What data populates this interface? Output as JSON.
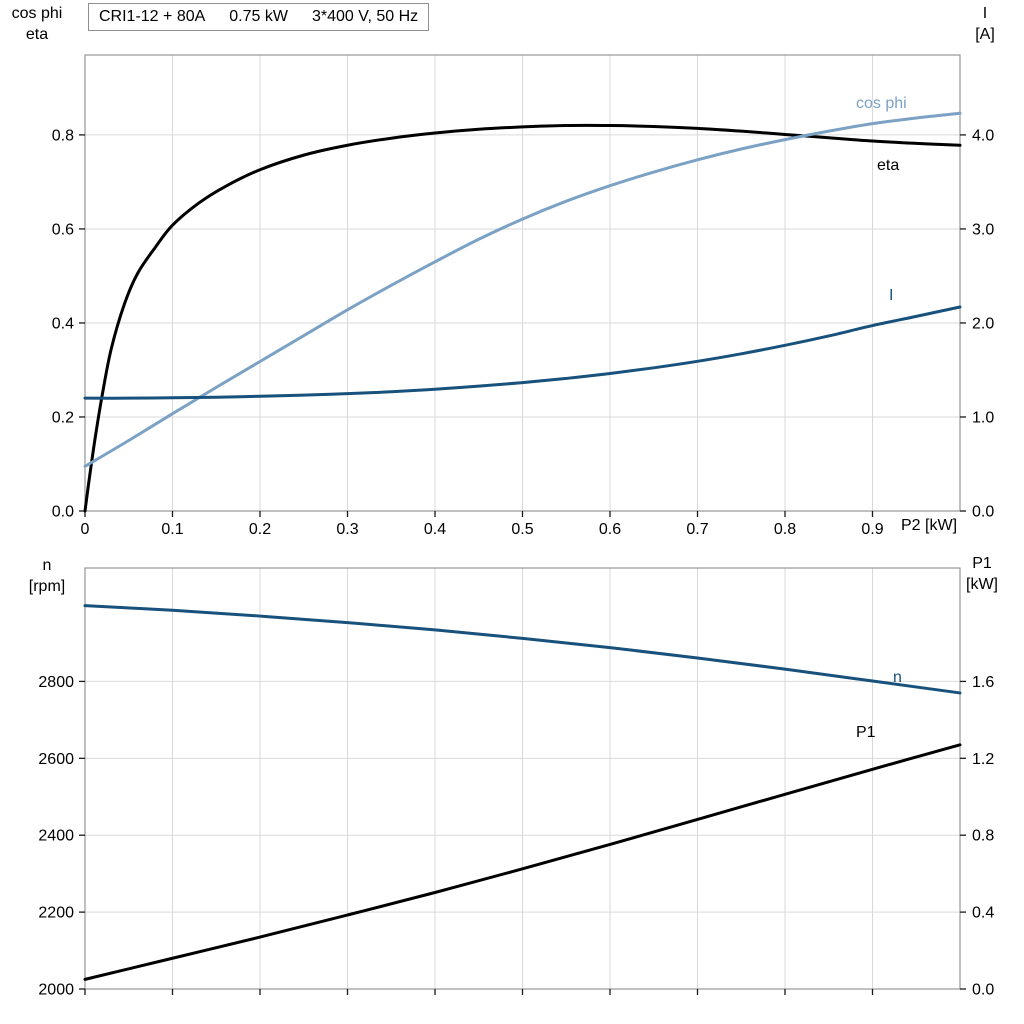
{
  "title_box": {
    "segments": [
      "CRI1-12 + 80A",
      "0.75 kW",
      "3*400 V, 50 Hz"
    ]
  },
  "palette": {
    "grid": "#d9d9d9",
    "frame": "#969696",
    "tick": "#1a1a1a",
    "text": "#000000",
    "light_blue": "#7ba2c4",
    "dark_blue": "#17517c",
    "black": "#000000",
    "background": "#ffffff"
  },
  "chart_data": [
    {
      "type": "line",
      "title": "CRI1-12 + 80A   0.75 kW   3*400 V, 50 Hz",
      "x_label": "P2 [kW]",
      "xlim": [
        0,
        1.0
      ],
      "grid": true,
      "legend_position": "inline-curve-labels",
      "x_ticks": [
        0,
        0.1,
        0.2,
        0.3,
        0.4,
        0.5,
        0.6,
        0.7,
        0.8,
        0.9
      ],
      "x_tick_labels": [
        "0",
        "0.1",
        "0.2",
        "0.3",
        "0.4",
        "0.5",
        "0.6",
        "0.7",
        "0.8",
        "0.9"
      ],
      "left_axis": {
        "label_lines": [
          "cos phi",
          "eta"
        ],
        "lim": [
          0,
          0.97
        ],
        "ticks": [
          0,
          0.2,
          0.4,
          0.6,
          0.8
        ],
        "tick_labels": [
          "0.0",
          "0.2",
          "0.4",
          "0.6",
          "0.8"
        ]
      },
      "right_axis": {
        "label_lines": [
          "I",
          "[A]"
        ],
        "lim": [
          0,
          4.85
        ],
        "ticks": [
          0,
          1,
          2,
          3,
          4
        ],
        "tick_labels": [
          "0.0",
          "1.0",
          "2.0",
          "3.0",
          "4.0"
        ]
      },
      "series": [
        {
          "name": "eta",
          "axis": "left",
          "color": "#000000",
          "x": [
            0,
            0.005,
            0.012,
            0.02,
            0.03,
            0.045,
            0.06,
            0.08,
            0.1,
            0.13,
            0.16,
            0.2,
            0.25,
            0.3,
            0.35,
            0.4,
            0.45,
            0.5,
            0.55,
            0.6,
            0.65,
            0.7,
            0.75,
            0.8,
            0.85,
            0.9,
            0.95,
            1.0
          ],
          "y": [
            0,
            0.07,
            0.16,
            0.25,
            0.345,
            0.44,
            0.505,
            0.56,
            0.608,
            0.655,
            0.69,
            0.726,
            0.757,
            0.778,
            0.793,
            0.804,
            0.812,
            0.817,
            0.82,
            0.82,
            0.818,
            0.814,
            0.808,
            0.801,
            0.794,
            0.787,
            0.782,
            0.778
          ]
        },
        {
          "name": "cos phi",
          "axis": "left",
          "color": "#7ba2c4",
          "x": [
            0,
            0.05,
            0.1,
            0.15,
            0.2,
            0.25,
            0.3,
            0.35,
            0.4,
            0.45,
            0.5,
            0.55,
            0.6,
            0.65,
            0.7,
            0.75,
            0.8,
            0.85,
            0.9,
            0.95,
            1.0
          ],
          "y": [
            0.095,
            0.15,
            0.207,
            0.263,
            0.318,
            0.373,
            0.428,
            0.48,
            0.53,
            0.578,
            0.621,
            0.659,
            0.692,
            0.721,
            0.747,
            0.77,
            0.79,
            0.808,
            0.824,
            0.836,
            0.846
          ]
        },
        {
          "name": "I",
          "axis": "right",
          "color": "#17517c",
          "x": [
            0,
            0.05,
            0.1,
            0.15,
            0.2,
            0.25,
            0.3,
            0.35,
            0.4,
            0.45,
            0.5,
            0.55,
            0.6,
            0.65,
            0.7,
            0.75,
            0.8,
            0.85,
            0.9,
            0.95,
            1.0
          ],
          "y": [
            1.2,
            1.2,
            1.205,
            1.21,
            1.22,
            1.232,
            1.248,
            1.268,
            1.295,
            1.328,
            1.365,
            1.41,
            1.462,
            1.523,
            1.592,
            1.672,
            1.762,
            1.862,
            1.972,
            2.07,
            2.17
          ]
        }
      ]
    },
    {
      "type": "line",
      "title": "",
      "x_label": "",
      "xlim": [
        0,
        1.0
      ],
      "grid": true,
      "x_ticks": [
        0,
        0.1,
        0.2,
        0.3,
        0.4,
        0.5,
        0.6,
        0.7,
        0.8,
        0.9
      ],
      "x_tick_labels": [],
      "left_axis": {
        "label_lines": [
          "n",
          "[rpm]"
        ],
        "lim": [
          2000,
          3095
        ],
        "ticks": [
          2000,
          2200,
          2400,
          2600,
          2800
        ],
        "tick_labels": [
          "2000",
          "2200",
          "2400",
          "2600",
          "2800"
        ]
      },
      "right_axis": {
        "label_lines": [
          "P1",
          "[kW]"
        ],
        "lim": [
          0,
          2.19
        ],
        "ticks": [
          0,
          0.4,
          0.8,
          1.2,
          1.6
        ],
        "tick_labels": [
          "0.0",
          "0.4",
          "0.8",
          "1.2",
          "1.6"
        ]
      },
      "series": [
        {
          "name": "n",
          "axis": "left",
          "color": "#17517c",
          "x": [
            0,
            0.1,
            0.2,
            0.3,
            0.4,
            0.5,
            0.6,
            0.7,
            0.8,
            0.9,
            1.0
          ],
          "y": [
            2997,
            2985,
            2970,
            2953,
            2934,
            2912,
            2888,
            2861,
            2832,
            2801,
            2770
          ]
        },
        {
          "name": "P1",
          "axis": "right",
          "color": "#000000",
          "x": [
            0,
            0.1,
            0.2,
            0.3,
            0.4,
            0.5,
            0.6,
            0.7,
            0.8,
            0.9,
            1.0
          ],
          "y": [
            0.05,
            0.16,
            0.27,
            0.385,
            0.502,
            0.625,
            0.752,
            0.882,
            1.013,
            1.143,
            1.27
          ]
        }
      ]
    }
  ]
}
